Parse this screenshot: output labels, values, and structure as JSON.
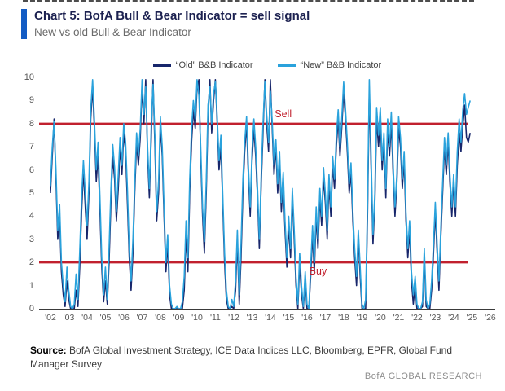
{
  "header": {
    "title": "Chart 5: BofA Bull & Bear Indicator = sell signal",
    "subtitle": "New vs old Bull & Bear Indicator",
    "accent_color": "#135cc4"
  },
  "footer": {
    "source_label": "Source:",
    "source_text": " BofA Global Investment Strategy, ICE Data Indices LLC, Bloomberg, EPFR, Global Fund Manager Survey",
    "brand": "BofA GLOBAL RESEARCH"
  },
  "chart_data": {
    "type": "line",
    "title": "New vs old Bull & Bear Indicator",
    "grid": false,
    "legend_position": "top-center",
    "x_axis": {
      "range": [
        2001.38,
        2026.27
      ],
      "tick_start_year": 2002,
      "tick_labels": [
        "'02",
        "'03",
        "'04",
        "'05",
        "'06",
        "'07",
        "'08",
        "'09",
        "'10",
        "'11",
        "'12",
        "'13",
        "'14",
        "'15",
        "'16",
        "'17",
        "'18",
        "'19",
        "'20",
        "'21",
        "'22",
        "'23",
        "'24",
        "'25",
        "'26"
      ]
    },
    "y_axis": {
      "range": [
        0,
        10
      ],
      "ticks": [
        0,
        1,
        2,
        3,
        4,
        5,
        6,
        7,
        8,
        9,
        10
      ]
    },
    "thresholds": [
      {
        "value": 8,
        "label": "Sell",
        "color": "#c1202e",
        "x_end": 2024.8,
        "label_x": 2014.7,
        "label_side": "above"
      },
      {
        "value": 2,
        "label": "Buy",
        "color": "#c1202e",
        "x_end": 2024.8,
        "label_x": 2016.6,
        "label_side": "below"
      }
    ],
    "x_start": 2002.0,
    "x_step": 0.1,
    "series": [
      {
        "name": "“Old” B&B Indicator",
        "color": "#17266b",
        "values": [
          5.0,
          6.6,
          8.2,
          5.6,
          3.0,
          4.0,
          1.6,
          0.6,
          0.1,
          1.2,
          0.4,
          0.0,
          0.0,
          0.0,
          0.8,
          0.1,
          1.8,
          4.2,
          6.0,
          4.4,
          3.0,
          5.0,
          8.2,
          9.6,
          7.8,
          5.5,
          6.6,
          4.2,
          1.8,
          0.3,
          1.2,
          0.2,
          2.0,
          4.6,
          6.6,
          5.6,
          3.8,
          5.2,
          7.0,
          5.8,
          7.6,
          6.8,
          4.6,
          2.2,
          0.8,
          2.4,
          5.0,
          7.2,
          6.2,
          7.4,
          9.6,
          8.0,
          9.9,
          6.6,
          4.8,
          7.4,
          9.9,
          7.0,
          3.8,
          5.0,
          7.9,
          6.6,
          4.0,
          1.6,
          2.8,
          0.6,
          0.0,
          0.0,
          0.0,
          0.0,
          0.0,
          0.0,
          0.0,
          0.8,
          3.2,
          1.6,
          5.0,
          7.2,
          8.6,
          7.8,
          9.6,
          9.9,
          6.6,
          4.0,
          2.4,
          5.0,
          8.4,
          9.9,
          7.6,
          9.0,
          9.9,
          8.0,
          6.0,
          7.0,
          4.6,
          2.0,
          0.4,
          0.0,
          0.0,
          0.1,
          0.0,
          0.8,
          3.0,
          0.2,
          2.2,
          5.0,
          6.8,
          8.0,
          5.8,
          4.0,
          6.4,
          7.8,
          6.6,
          4.8,
          2.6,
          5.4,
          7.6,
          9.9,
          8.0,
          6.8,
          9.9,
          7.8,
          5.8,
          7.0,
          5.0,
          6.4,
          4.2,
          5.5,
          3.4,
          1.8,
          3.6,
          2.2,
          4.8,
          3.0,
          1.0,
          0.0,
          2.0,
          0.6,
          0.0,
          1.2,
          0.0,
          0.0,
          1.4,
          3.2,
          1.6,
          4.0,
          2.6,
          4.8,
          3.6,
          5.7,
          4.6,
          3.0,
          5.4,
          4.0,
          6.2,
          5.2,
          7.0,
          8.2,
          6.6,
          7.9,
          9.4,
          8.2,
          6.8,
          5.0,
          5.9,
          3.8,
          2.2,
          1.0,
          3.0,
          1.4,
          0.0,
          0.0,
          0.0,
          4.0,
          9.4,
          6.0,
          2.8,
          4.6,
          8.2,
          7.0,
          8.2,
          6.0,
          7.2,
          4.8,
          7.8,
          6.6,
          8.0,
          5.8,
          4.0,
          5.4,
          7.8,
          7.0,
          5.2,
          6.4,
          3.8,
          2.2,
          3.4,
          1.2,
          0.2,
          1.0,
          0.0,
          0.0,
          0.0,
          0.1,
          2.2,
          0.1,
          0.0,
          0.0,
          0.8,
          2.4,
          4.2,
          2.4,
          0.8,
          3.1,
          5.0,
          7.0,
          5.8,
          7.2,
          5.4,
          4.0,
          5.4,
          4.0,
          6.2,
          7.6,
          6.8,
          7.9,
          8.8,
          7.4,
          7.2,
          7.6
        ]
      },
      {
        "name": "“New” B&B Indicator",
        "color": "#2aa2dc",
        "values": [
          5.3,
          7.0,
          8.1,
          6.0,
          3.4,
          4.5,
          2.0,
          1.0,
          0.3,
          1.8,
          0.8,
          0.1,
          0.0,
          0.2,
          1.5,
          0.4,
          2.5,
          4.8,
          6.4,
          5.0,
          3.6,
          5.5,
          8.6,
          9.9,
          8.2,
          6.0,
          7.2,
          4.8,
          2.2,
          0.6,
          1.8,
          0.4,
          2.6,
          5.2,
          7.1,
          6.1,
          4.2,
          5.8,
          7.4,
          6.2,
          8.0,
          7.2,
          5.2,
          2.6,
          1.2,
          3.0,
          5.4,
          7.6,
          6.6,
          7.8,
          9.9,
          8.4,
          9.6,
          7.0,
          5.2,
          7.9,
          9.7,
          7.4,
          4.2,
          5.5,
          8.3,
          7.0,
          4.4,
          2.0,
          3.2,
          1.0,
          0.2,
          0.0,
          0.0,
          0.1,
          0.0,
          0.0,
          0.3,
          1.4,
          3.8,
          2.2,
          5.6,
          7.8,
          9.0,
          8.2,
          9.9,
          9.2,
          7.0,
          4.4,
          2.9,
          5.5,
          8.8,
          9.6,
          8.0,
          9.3,
          9.8,
          8.3,
          6.4,
          7.5,
          5.0,
          2.4,
          0.8,
          0.1,
          0.0,
          0.4,
          0.1,
          1.2,
          3.4,
          0.6,
          2.8,
          5.6,
          7.2,
          8.3,
          6.2,
          4.4,
          6.8,
          8.2,
          7.0,
          5.2,
          3.0,
          5.8,
          8.0,
          9.8,
          8.4,
          7.2,
          9.4,
          8.1,
          6.2,
          7.3,
          5.4,
          6.8,
          4.6,
          5.9,
          3.8,
          2.2,
          4.0,
          2.6,
          5.2,
          3.4,
          1.4,
          0.2,
          2.4,
          1.0,
          0.1,
          1.6,
          0.2,
          0.0,
          1.8,
          3.6,
          2.0,
          4.4,
          3.0,
          5.2,
          4.0,
          6.1,
          5.0,
          3.4,
          5.8,
          4.4,
          6.6,
          5.6,
          7.4,
          8.6,
          7.0,
          8.3,
          9.8,
          8.6,
          7.2,
          5.4,
          6.3,
          4.2,
          2.6,
          1.4,
          3.4,
          1.8,
          0.2,
          0.0,
          0.4,
          4.5,
          9.9,
          6.5,
          3.2,
          5.0,
          8.7,
          7.5,
          8.7,
          6.4,
          7.6,
          5.2,
          8.2,
          7.0,
          8.5,
          6.2,
          4.4,
          5.8,
          8.3,
          7.4,
          5.6,
          6.8,
          4.2,
          2.6,
          3.8,
          1.6,
          0.6,
          1.4,
          0.2,
          0.0,
          0.0,
          0.3,
          2.6,
          0.4,
          0.0,
          0.2,
          1.2,
          2.8,
          4.6,
          2.8,
          1.2,
          3.5,
          5.4,
          7.4,
          6.2,
          7.6,
          5.8,
          4.4,
          5.8,
          4.4,
          6.8,
          8.2,
          7.2,
          8.6,
          9.3,
          8.4,
          8.7,
          9.0
        ]
      }
    ]
  }
}
